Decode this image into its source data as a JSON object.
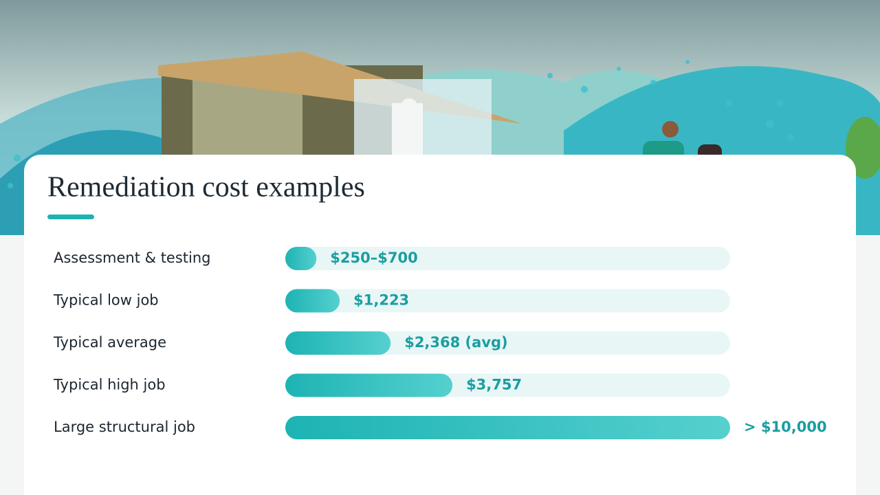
{
  "chart_data": {
    "type": "bar",
    "orientation": "horizontal",
    "title": "Remediation cost examples",
    "categories": [
      "Assessment & testing",
      "Typical low job",
      "Typical average",
      "Typical high job",
      "Large structural job"
    ],
    "values": [
      700,
      1223,
      2368,
      3757,
      10000
    ],
    "value_labels": [
      "$250–$700",
      "$1,223",
      "$2,368 (avg)",
      "$3,757",
      "> $10,000"
    ],
    "color": "#25b8b8",
    "xlim": [
      0,
      10000
    ]
  }
}
